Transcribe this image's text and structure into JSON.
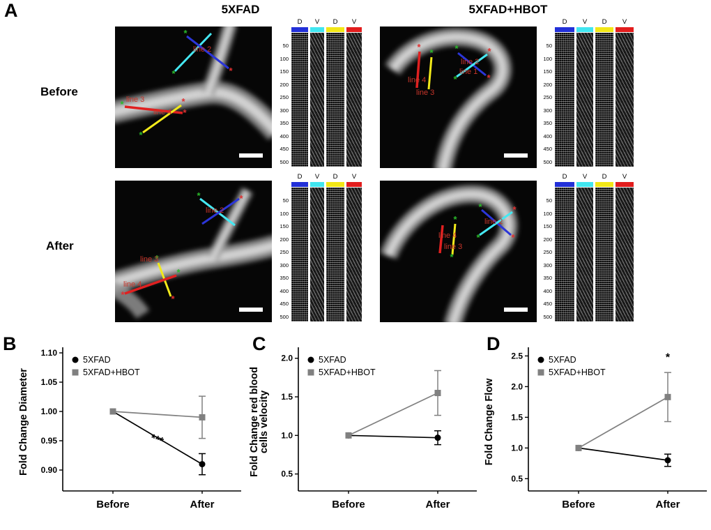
{
  "figure_labels": {
    "A": "A",
    "B": "B",
    "C": "C",
    "D": "D"
  },
  "panelA": {
    "groups": [
      "5XFAD",
      "5XFAD+HBOT"
    ],
    "rows": [
      "Before",
      "After"
    ],
    "kymograph": {
      "column_headers": [
        "D",
        "V",
        "D",
        "V"
      ],
      "bar_colors": [
        "#2230d8",
        "#40e6f0",
        "#f2e716",
        "#e21d1d"
      ],
      "yticks": [
        "50",
        "100",
        "150",
        "200",
        "250",
        "300",
        "350",
        "400",
        "450",
        "500"
      ]
    },
    "annotation_colors": {
      "line_blue": "#2b35d8",
      "line_cyan": "#45e8f2",
      "line_yellow": "#f2ea1a",
      "line_red": "#e02020",
      "label": "#c8352a",
      "marker_green": "#2ab82a",
      "marker_red": "#e03030"
    },
    "images": [
      {
        "group": "5XFAD",
        "row": "Before",
        "annotations": [
          "line 2",
          "line 3",
          "line 4"
        ]
      },
      {
        "group": "5XFAD",
        "row": "After",
        "annotations": [
          "line 2",
          "line 3",
          "line 4"
        ]
      },
      {
        "group": "5XFAD+HBOT",
        "row": "Before",
        "annotations": [
          "line 2",
          "line 1",
          "line 4",
          "line 3"
        ]
      },
      {
        "group": "5XFAD+HBOT",
        "row": "After",
        "annotations": [
          "line 2",
          "line 4",
          "line 3"
        ]
      }
    ]
  },
  "chart_data": [
    {
      "panel": "B",
      "type": "line",
      "ylabel": [
        "Fold Change Diameter"
      ],
      "categories": [
        "Before",
        "After"
      ],
      "ylim": [
        0.8643,
        1.1
      ],
      "yticks": [
        {
          "v": 0.9,
          "label": "0.90"
        },
        {
          "v": 0.95,
          "label": "0.95"
        },
        {
          "v": 1.0,
          "label": "1.00"
        },
        {
          "v": 1.05,
          "label": "1.05"
        },
        {
          "v": 1.1,
          "label": "1.10"
        }
      ],
      "series": [
        {
          "name": "5XFAD",
          "marker": "circle",
          "color": "#000000",
          "values": [
            1.0,
            0.91
          ],
          "errors": [
            0,
            0.018
          ]
        },
        {
          "name": "5XFAD+HBOT",
          "marker": "square",
          "color": "#808080",
          "values": [
            1.0,
            0.99
          ],
          "errors": [
            0,
            0.036
          ]
        }
      ],
      "annotations": [
        {
          "text": "***",
          "x_frac": 0.48,
          "value": 0.946,
          "rotate": 20
        }
      ]
    },
    {
      "panel": "C",
      "type": "line",
      "ylabel": [
        "Fold Change red blood",
        "cells velocity"
      ],
      "categories": [
        "Before",
        "After"
      ],
      "ylim": [
        0.28,
        2.07
      ],
      "yticks": [
        {
          "v": 0.5,
          "label": "0.5"
        },
        {
          "v": 1.0,
          "label": "1.0"
        },
        {
          "v": 1.5,
          "label": "1.5"
        },
        {
          "v": 2.0,
          "label": "2.0"
        }
      ],
      "series": [
        {
          "name": "5XFAD",
          "marker": "circle",
          "color": "#000000",
          "values": [
            1.0,
            0.97
          ],
          "errors": [
            0,
            0.09
          ]
        },
        {
          "name": "5XFAD+HBOT",
          "marker": "square",
          "color": "#808080",
          "values": [
            1.0,
            1.55
          ],
          "errors": [
            0,
            0.29
          ]
        }
      ],
      "annotations": []
    },
    {
      "panel": "D",
      "type": "line",
      "ylabel": [
        "Fold Change Flow"
      ],
      "categories": [
        "Before",
        "After"
      ],
      "ylim": [
        0.3,
        2.55
      ],
      "yticks": [
        {
          "v": 0.5,
          "label": "0.5"
        },
        {
          "v": 1.0,
          "label": "1.0"
        },
        {
          "v": 1.5,
          "label": "1.5"
        },
        {
          "v": 2.0,
          "label": "2.0"
        },
        {
          "v": 2.5,
          "label": "2.5"
        }
      ],
      "series": [
        {
          "name": "5XFAD",
          "marker": "circle",
          "color": "#000000",
          "values": [
            1.0,
            0.8
          ],
          "errors": [
            0,
            0.1
          ]
        },
        {
          "name": "5XFAD+HBOT",
          "marker": "square",
          "color": "#808080",
          "values": [
            1.0,
            1.83
          ],
          "errors": [
            0,
            0.4
          ]
        }
      ],
      "annotations": [
        {
          "text": "*",
          "x_frac": 1,
          "value": 2.42,
          "rotate": 0
        }
      ]
    }
  ]
}
